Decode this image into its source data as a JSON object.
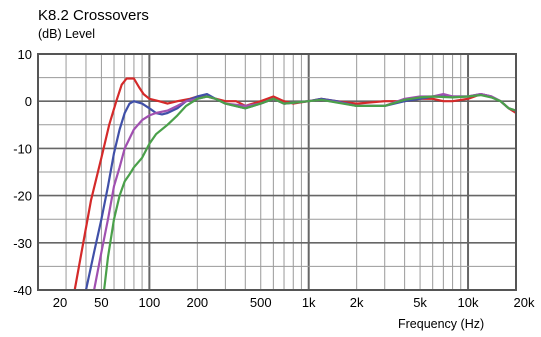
{
  "chart_data": {
    "type": "line",
    "title": "K8.2 Crossovers",
    "ylabel": "(dB)  Level",
    "xlabel": "Frequency   (Hz)",
    "x_scale": "log",
    "xlim": [
      20,
      20000
    ],
    "ylim": [
      -40,
      10
    ],
    "yticks": [
      10,
      0,
      -10,
      -20,
      -30,
      -40
    ],
    "xticks": [
      {
        "value": 20,
        "label": "20"
      },
      {
        "value": 50,
        "label": "50"
      },
      {
        "value": 100,
        "label": "100"
      },
      {
        "value": 200,
        "label": "200"
      },
      {
        "value": 500,
        "label": "500"
      },
      {
        "value": 1000,
        "label": "1k"
      },
      {
        "value": 2000,
        "label": "2k"
      },
      {
        "value": 5000,
        "label": "5k"
      },
      {
        "value": 10000,
        "label": "10k"
      },
      {
        "value": 20000,
        "label": "20k"
      }
    ],
    "grid": true,
    "series": [
      {
        "color": "#d42a2a",
        "points": [
          [
            34,
            -40
          ],
          [
            38,
            -31
          ],
          [
            43,
            -21
          ],
          [
            50,
            -12
          ],
          [
            56,
            -5
          ],
          [
            62,
            0
          ],
          [
            67,
            3.5
          ],
          [
            72,
            4.8
          ],
          [
            80,
            4.8
          ],
          [
            86,
            3
          ],
          [
            92,
            1.5
          ],
          [
            100,
            0.5
          ],
          [
            115,
            0
          ],
          [
            130,
            -0.5
          ],
          [
            150,
            0
          ],
          [
            180,
            0.5
          ],
          [
            200,
            1
          ],
          [
            230,
            1
          ],
          [
            300,
            0
          ],
          [
            350,
            0
          ],
          [
            400,
            -1
          ],
          [
            500,
            0
          ],
          [
            600,
            1
          ],
          [
            700,
            0
          ],
          [
            800,
            -0.5
          ],
          [
            1000,
            0
          ],
          [
            1200,
            0.5
          ],
          [
            1500,
            0
          ],
          [
            2000,
            -0.5
          ],
          [
            3000,
            0
          ],
          [
            4000,
            0
          ],
          [
            5000,
            0.5
          ],
          [
            6000,
            0.5
          ],
          [
            7000,
            0
          ],
          [
            8000,
            0
          ],
          [
            10000,
            0.5
          ],
          [
            11000,
            1
          ],
          [
            12000,
            1.5
          ],
          [
            14000,
            1
          ],
          [
            16000,
            0
          ],
          [
            18000,
            -1.5
          ],
          [
            20000,
            -2.5
          ]
        ]
      },
      {
        "color": "#4050a8",
        "points": [
          [
            40,
            -40
          ],
          [
            45,
            -32
          ],
          [
            50,
            -25
          ],
          [
            55,
            -18
          ],
          [
            60,
            -11
          ],
          [
            65,
            -6
          ],
          [
            70,
            -2.5
          ],
          [
            75,
            -0.5
          ],
          [
            80,
            0
          ],
          [
            90,
            -0.5
          ],
          [
            100,
            -1.5
          ],
          [
            110,
            -2.5
          ],
          [
            120,
            -2.8
          ],
          [
            130,
            -2.5
          ],
          [
            150,
            -1.5
          ],
          [
            170,
            0
          ],
          [
            200,
            1
          ],
          [
            230,
            1.5
          ],
          [
            260,
            0.5
          ],
          [
            300,
            -0.5
          ],
          [
            400,
            -1.5
          ],
          [
            500,
            -0.5
          ],
          [
            600,
            0.5
          ],
          [
            700,
            -0.5
          ],
          [
            1000,
            0
          ],
          [
            1200,
            0.5
          ],
          [
            1500,
            0
          ],
          [
            2000,
            -1
          ],
          [
            3000,
            -1
          ],
          [
            4000,
            0
          ],
          [
            5000,
            0.5
          ],
          [
            6000,
            1
          ],
          [
            8000,
            1
          ],
          [
            10000,
            1
          ],
          [
            12000,
            1.5
          ],
          [
            14000,
            1
          ],
          [
            16000,
            0
          ],
          [
            18000,
            -1.5
          ],
          [
            20000,
            -2
          ]
        ]
      },
      {
        "color": "#a050b0",
        "points": [
          [
            45,
            -40
          ],
          [
            50,
            -32
          ],
          [
            55,
            -25
          ],
          [
            60,
            -18
          ],
          [
            65,
            -14
          ],
          [
            70,
            -10
          ],
          [
            80,
            -6
          ],
          [
            90,
            -4
          ],
          [
            100,
            -3
          ],
          [
            110,
            -2.5
          ],
          [
            130,
            -2
          ],
          [
            150,
            -1
          ],
          [
            170,
            0
          ],
          [
            200,
            0.5
          ],
          [
            230,
            1
          ],
          [
            260,
            0.5
          ],
          [
            300,
            -0.5
          ],
          [
            400,
            -1
          ],
          [
            500,
            -0.5
          ],
          [
            600,
            0.5
          ],
          [
            700,
            -0.5
          ],
          [
            1000,
            0
          ],
          [
            1200,
            0.3
          ],
          [
            1500,
            -0.2
          ],
          [
            2000,
            -1
          ],
          [
            3000,
            -1
          ],
          [
            4000,
            0.5
          ],
          [
            5000,
            1
          ],
          [
            6000,
            1
          ],
          [
            7000,
            1.5
          ],
          [
            8000,
            1
          ],
          [
            10000,
            1
          ],
          [
            12000,
            1.5
          ],
          [
            14000,
            1
          ],
          [
            16000,
            0
          ],
          [
            18000,
            -1.5
          ],
          [
            20000,
            -2
          ]
        ]
      },
      {
        "color": "#4aa04a",
        "points": [
          [
            52,
            -40
          ],
          [
            55,
            -33
          ],
          [
            60,
            -25
          ],
          [
            65,
            -20
          ],
          [
            70,
            -17
          ],
          [
            75,
            -15.5
          ],
          [
            80,
            -14
          ],
          [
            90,
            -12
          ],
          [
            100,
            -9
          ],
          [
            110,
            -7
          ],
          [
            130,
            -5
          ],
          [
            150,
            -3
          ],
          [
            170,
            -1
          ],
          [
            200,
            0.5
          ],
          [
            230,
            1
          ],
          [
            260,
            0.5
          ],
          [
            300,
            -0.5
          ],
          [
            400,
            -1.5
          ],
          [
            500,
            -0.5
          ],
          [
            600,
            0.5
          ],
          [
            700,
            -0.5
          ],
          [
            1000,
            0
          ],
          [
            1200,
            0.3
          ],
          [
            1500,
            -0.3
          ],
          [
            2000,
            -1
          ],
          [
            3000,
            -1
          ],
          [
            4000,
            0.3
          ],
          [
            5000,
            0.8
          ],
          [
            6000,
            1
          ],
          [
            8000,
            0.8
          ],
          [
            10000,
            1
          ],
          [
            12000,
            1.3
          ],
          [
            14000,
            0.8
          ],
          [
            16000,
            0
          ],
          [
            18000,
            -1.5
          ],
          [
            20000,
            -2
          ]
        ]
      }
    ]
  }
}
